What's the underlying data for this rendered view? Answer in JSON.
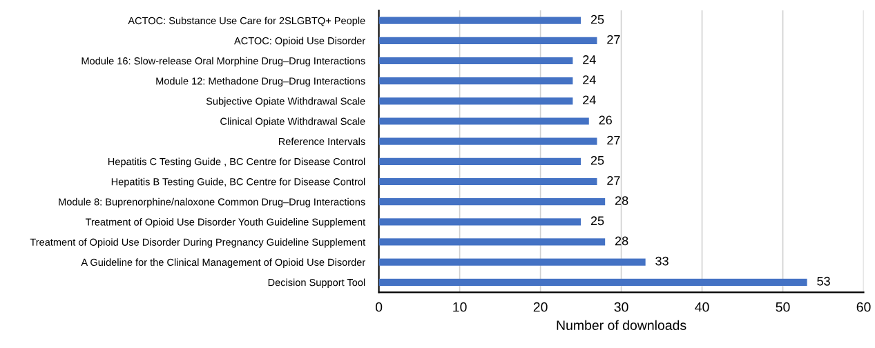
{
  "chart_data": {
    "type": "bar",
    "orientation": "horizontal",
    "xlabel": "Number of downloads",
    "categories": [
      "ACTOC: Substance Use Care for 2SLGBTQ+ People",
      "ACTOC: Opioid Use Disorder",
      "Module 16: Slow-release Oral Morphine Drug–Drug Interactions",
      "Module 12: Methadone Drug–Drug Interactions",
      "Subjective Opiate Withdrawal Scale",
      "Clinical Opiate Withdrawal Scale",
      "Reference Intervals",
      "Hepatitis C Testing Guide , BC Centre for Disease Control",
      "Hepatitis B Testing Guide, BC Centre for Disease Control",
      "Module 8: Buprenorphine/naloxone Common Drug–Drug Interactions",
      "Treatment of Opioid Use Disorder Youth Guideline Supplement",
      "Treatment of Opioid Use Disorder During Pregnancy Guideline Supplement",
      "A Guideline for the Clinical Management of Opioid Use Disorder",
      "Decision Support Tool"
    ],
    "values": [
      25,
      27,
      24,
      24,
      24,
      26,
      27,
      25,
      27,
      28,
      25,
      28,
      33,
      53
    ],
    "color": "#4472c4",
    "xlim": [
      0,
      60
    ],
    "xticks": [
      0,
      10,
      20,
      30,
      40,
      50,
      60
    ],
    "grid": "x",
    "data_labels": true
  }
}
